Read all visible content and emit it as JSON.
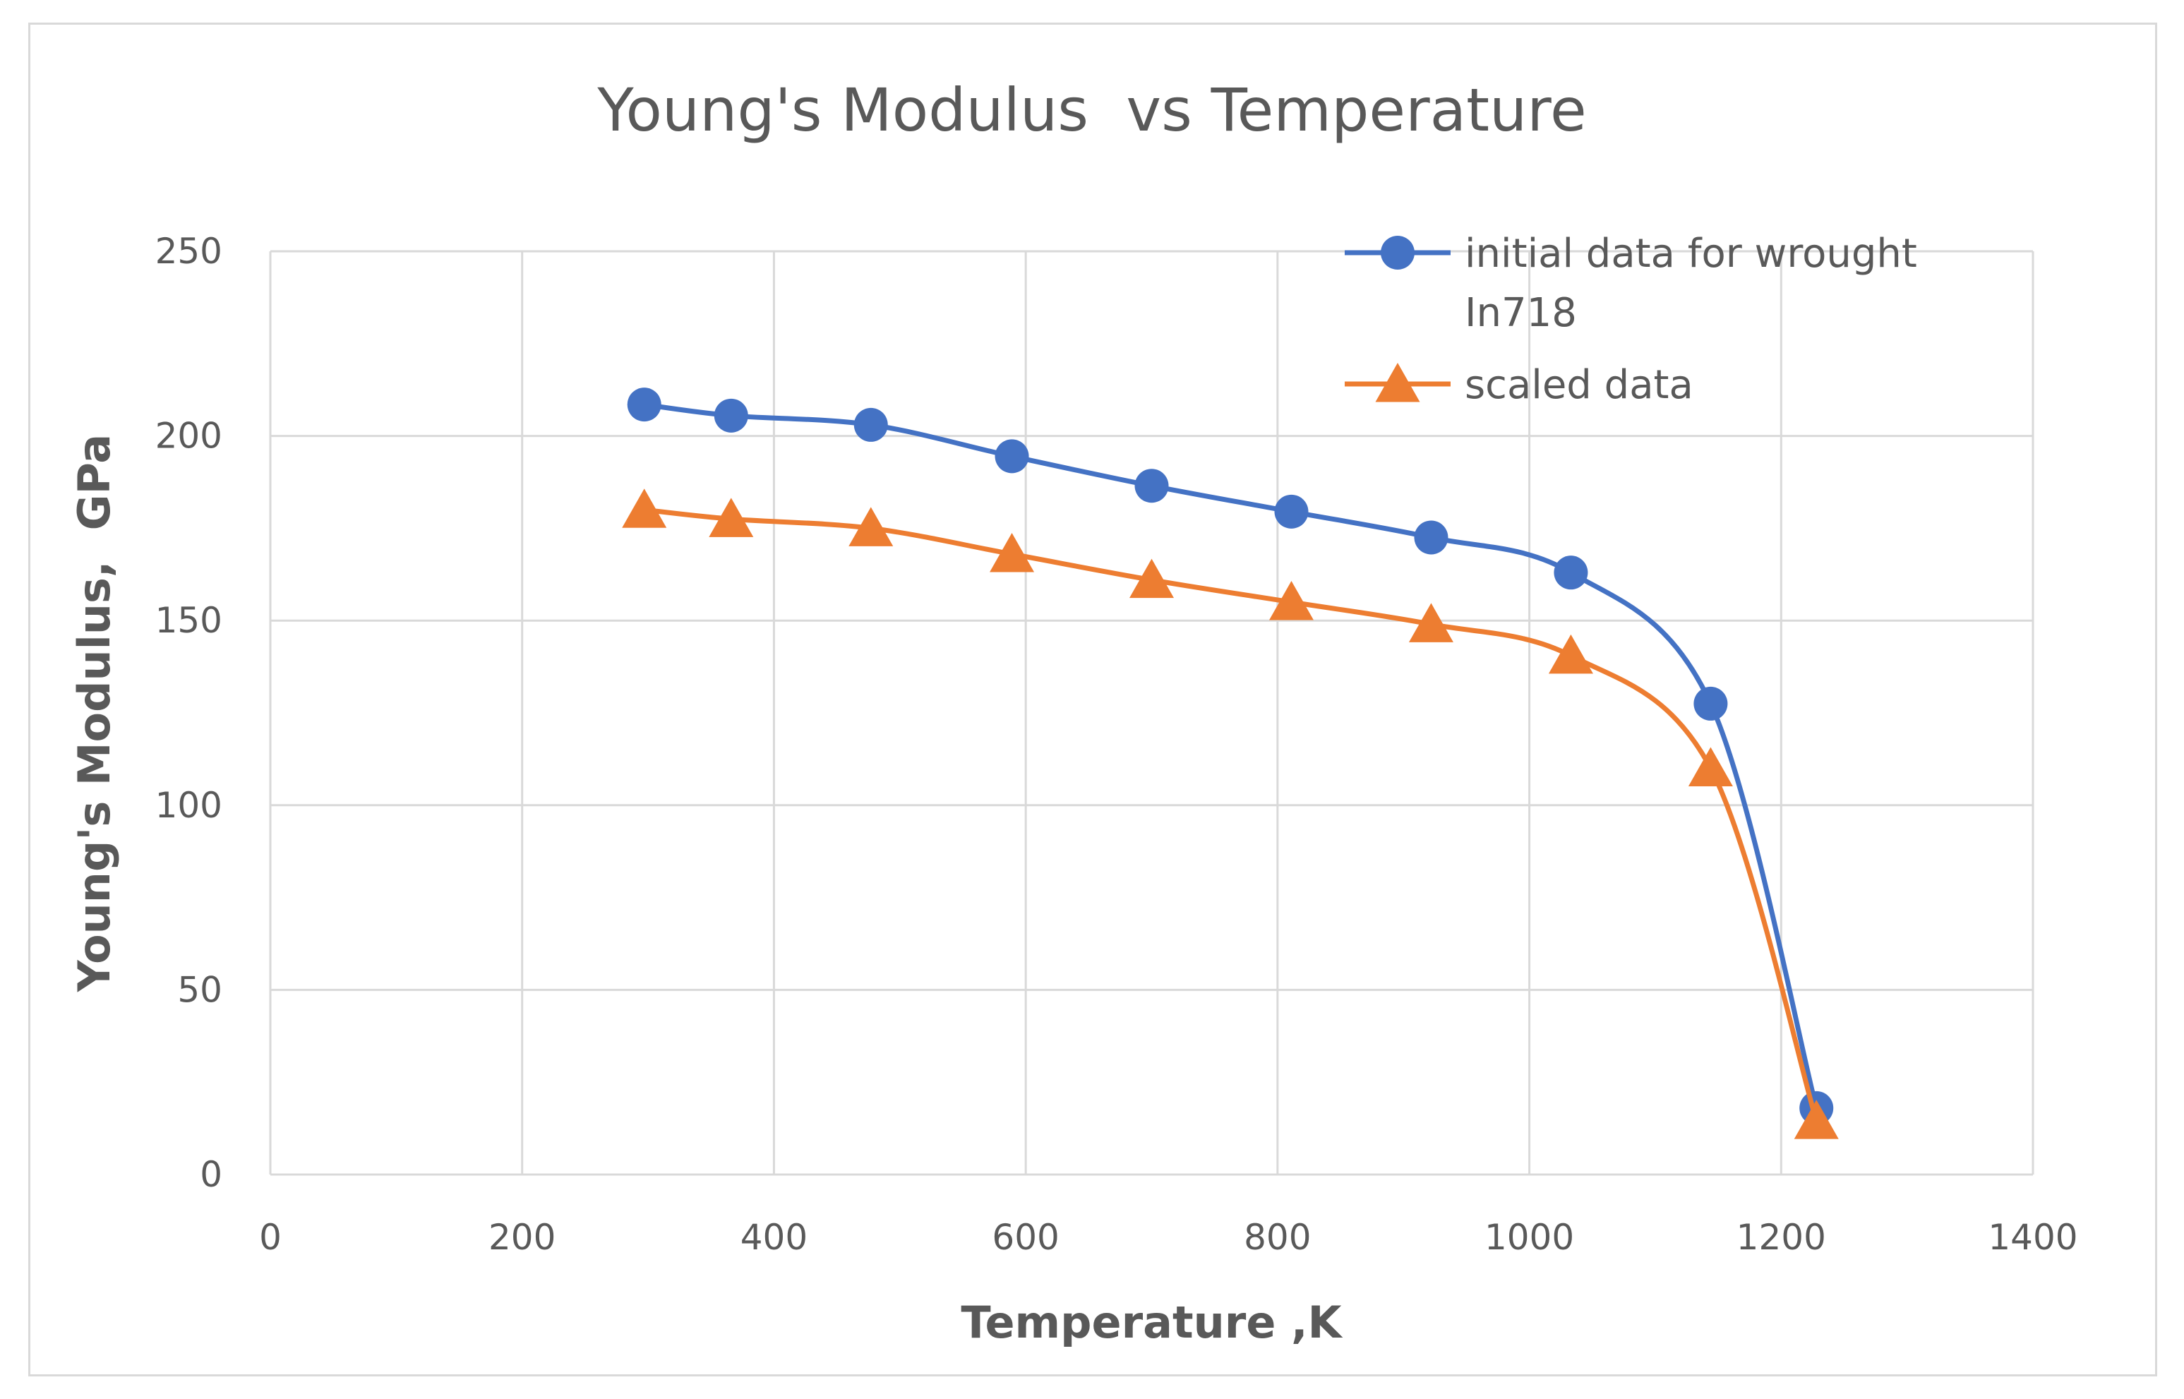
{
  "chart_data": {
    "type": "line",
    "title": "Young's Modulus  vs Temperature",
    "xlabel": "Temperature ,K",
    "ylabel": "Young's Modulus,  GPa",
    "xlim": [
      0,
      1400
    ],
    "ylim": [
      0,
      250
    ],
    "xticks": [
      0,
      200,
      400,
      600,
      800,
      1000,
      1200,
      1400
    ],
    "yticks": [
      0,
      50,
      100,
      150,
      200,
      250
    ],
    "grid": true,
    "smooth": true,
    "legend_position": "top-right",
    "series": [
      {
        "name": "initial data for wrought In718",
        "legend_lines": [
          "initial data for wrought",
          "In718"
        ],
        "color": "#4472c4",
        "marker": "circle",
        "x": [
          297,
          366,
          477,
          589,
          700,
          811,
          922,
          1033,
          1144,
          1228
        ],
        "y": [
          208.5,
          205.5,
          203,
          194.5,
          186.5,
          179.5,
          172.5,
          163,
          127.5,
          18
        ]
      },
      {
        "name": "scaled data",
        "legend_lines": [
          "scaled data"
        ],
        "color": "#ed7d31",
        "marker": "triangle",
        "x": [
          297,
          366,
          477,
          589,
          700,
          811,
          922,
          1033,
          1144,
          1228
        ],
        "y": [
          180,
          177.5,
          175,
          168,
          161,
          155,
          149,
          140.5,
          110,
          14.5
        ]
      }
    ]
  }
}
